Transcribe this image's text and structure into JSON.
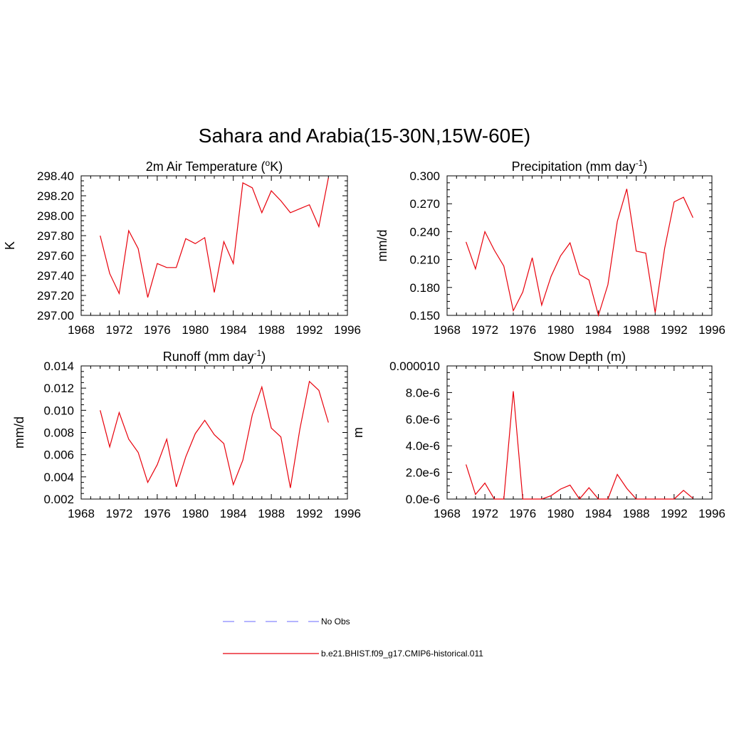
{
  "figure": {
    "title": "Sahara and Arabia(15-30N,15W-60E)"
  },
  "colors": {
    "series": "#e8000b",
    "obs": "#8888ff",
    "axis": "#000000"
  },
  "legend": {
    "items": [
      {
        "label": "No Obs",
        "style": "dashed",
        "color": "#8888ff"
      },
      {
        "label": "b.e21.BHIST.f09_g17.CMIP6-historical.011",
        "style": "solid",
        "color": "#e8000b"
      }
    ]
  },
  "chart_data": [
    {
      "type": "line",
      "title": "2m Air Temperature (",
      "title_sup": "o",
      "title_end": "K)",
      "ylabel": "K",
      "xlim": [
        1968,
        1996
      ],
      "xticks": [
        1968,
        1972,
        1976,
        1980,
        1984,
        1988,
        1992,
        1996
      ],
      "ylim": [
        297.0,
        298.4
      ],
      "yticks": [
        "297.00",
        "297.20",
        "297.40",
        "297.60",
        "297.80",
        "298.00",
        "298.20",
        "298.40"
      ],
      "series": [
        {
          "name": "b.e21.BHIST.f09_g17.CMIP6-historical.011",
          "x": [
            1970,
            1971,
            1972,
            1973,
            1974,
            1975,
            1976,
            1977,
            1978,
            1979,
            1980,
            1981,
            1982,
            1983,
            1984,
            1985,
            1986,
            1987,
            1988,
            1989,
            1990,
            1991,
            1992,
            1993,
            1994
          ],
          "y": [
            297.8,
            297.42,
            297.22,
            297.85,
            297.67,
            297.18,
            297.52,
            297.48,
            297.48,
            297.77,
            297.72,
            297.78,
            297.23,
            297.74,
            297.52,
            298.33,
            298.28,
            298.03,
            298.25,
            298.15,
            298.03,
            298.07,
            298.11,
            297.89,
            298.38
          ]
        }
      ]
    },
    {
      "type": "line",
      "title": "Precipitation (mm day",
      "title_sup": "-1",
      "title_end": ")",
      "ylabel": "mm/d",
      "xlim": [
        1968,
        1996
      ],
      "xticks": [
        1968,
        1972,
        1976,
        1980,
        1984,
        1988,
        1992,
        1996
      ],
      "ylim": [
        0.15,
        0.3
      ],
      "yticks": [
        "0.150",
        "0.180",
        "0.210",
        "0.240",
        "0.270",
        "0.300"
      ],
      "series": [
        {
          "name": "b.e21.BHIST.f09_g17.CMIP6-historical.011",
          "x": [
            1970,
            1971,
            1972,
            1973,
            1974,
            1975,
            1976,
            1977,
            1978,
            1979,
            1980,
            1981,
            1982,
            1983,
            1984,
            1985,
            1986,
            1987,
            1988,
            1989,
            1990,
            1991,
            1992,
            1993,
            1994
          ],
          "y": [
            0.229,
            0.2,
            0.24,
            0.22,
            0.203,
            0.155,
            0.175,
            0.212,
            0.161,
            0.192,
            0.214,
            0.228,
            0.194,
            0.188,
            0.15,
            0.183,
            0.251,
            0.286,
            0.219,
            0.217,
            0.153,
            0.222,
            0.272,
            0.277,
            0.255
          ]
        }
      ]
    },
    {
      "type": "line",
      "title": "Runoff (mm day",
      "title_sup": "-1",
      "title_end": ")",
      "ylabel": "mm/d",
      "xlim": [
        1968,
        1996
      ],
      "xticks": [
        1968,
        1972,
        1976,
        1980,
        1984,
        1988,
        1992,
        1996
      ],
      "ylim": [
        0.002,
        0.014
      ],
      "yticks": [
        "0.002",
        "0.004",
        "0.006",
        "0.008",
        "0.010",
        "0.012",
        "0.014"
      ],
      "series": [
        {
          "name": "b.e21.BHIST.f09_g17.CMIP6-historical.011",
          "x": [
            1970,
            1971,
            1972,
            1973,
            1974,
            1975,
            1976,
            1977,
            1978,
            1979,
            1980,
            1981,
            1982,
            1983,
            1984,
            1985,
            1986,
            1987,
            1988,
            1989,
            1990,
            1991,
            1992,
            1993,
            1994
          ],
          "y": [
            0.01,
            0.0067,
            0.0098,
            0.0074,
            0.0062,
            0.0035,
            0.0051,
            0.0074,
            0.0031,
            0.0058,
            0.0079,
            0.0091,
            0.0078,
            0.007,
            0.0033,
            0.0055,
            0.0096,
            0.0121,
            0.0084,
            0.0076,
            0.003,
            0.0083,
            0.0126,
            0.0118,
            0.0089
          ]
        }
      ]
    },
    {
      "type": "line",
      "title": "Snow Depth (m)",
      "title_sup": "",
      "title_end": "",
      "ylabel": "m",
      "xlim": [
        1968,
        1996
      ],
      "xticks": [
        1968,
        1972,
        1976,
        1980,
        1984,
        1988,
        1992,
        1996
      ],
      "ylim": [
        0.0,
        1e-05
      ],
      "yticks": [
        "0.0e-6",
        "2.0e-6",
        "4.0e-6",
        "6.0e-6",
        "8.0e-6",
        "0.000010"
      ],
      "series": [
        {
          "name": "b.e21.BHIST.f09_g17.CMIP6-historical.011",
          "x": [
            1970,
            1971,
            1972,
            1973,
            1974,
            1975,
            1976,
            1977,
            1978,
            1979,
            1980,
            1981,
            1982,
            1983,
            1984,
            1985,
            1986,
            1987,
            1988,
            1989,
            1990,
            1991,
            1992,
            1993,
            1994
          ],
          "y": [
            2.6e-06,
            3.5e-07,
            1.2e-06,
            0.0,
            0.0,
            8.1e-06,
            0.0,
            0.0,
            0.0,
            2.5e-07,
            7.5e-07,
            1.05e-06,
            0.0,
            8.5e-07,
            0.0,
            0.0,
            1.85e-06,
            8e-07,
            0.0,
            0.0,
            0.0,
            0.0,
            0.0,
            6.5e-07,
            5e-08
          ]
        }
      ]
    }
  ]
}
